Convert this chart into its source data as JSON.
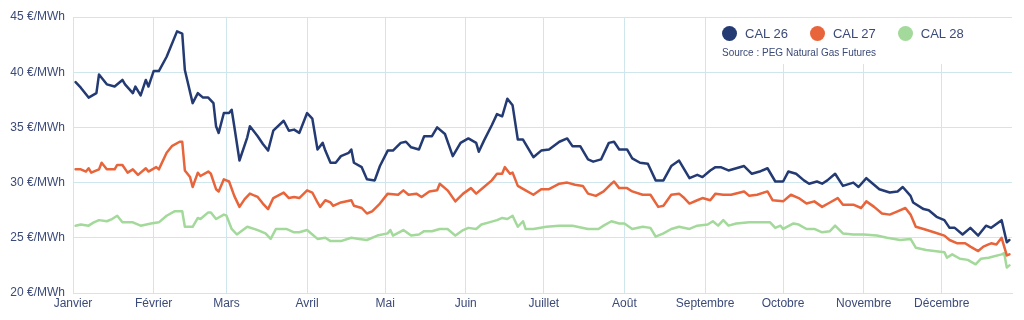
{
  "chart_data": {
    "type": "line",
    "xlim": [
      "--01-01",
      "--12-28"
    ],
    "xticks": [
      {
        "value": "--01-01",
        "label": "Janvier"
      },
      {
        "value": "--02-01",
        "label": "Février"
      },
      {
        "value": "--03-01",
        "label": "Mars"
      },
      {
        "value": "--04-01",
        "label": "Avril"
      },
      {
        "value": "--05-01",
        "label": "Mai"
      },
      {
        "value": "--06-01",
        "label": "Juin"
      },
      {
        "value": "--07-01",
        "label": "Juillet"
      },
      {
        "value": "--08-01",
        "label": "Août"
      },
      {
        "value": "--09-01",
        "label": "Septembre"
      },
      {
        "value": "--10-01",
        "label": "Octobre"
      },
      {
        "value": "--11-01",
        "label": "Novembre"
      },
      {
        "value": "--12-01",
        "label": "Décembre"
      }
    ],
    "ylim": [
      20,
      45
    ],
    "yticks": [
      {
        "value": 20,
        "label": "20 €/MWh"
      },
      {
        "value": 25,
        "label": "25 €/MWh"
      },
      {
        "value": 30,
        "label": "30 €/MWh"
      },
      {
        "value": 35,
        "label": "35 €/MWh"
      },
      {
        "value": 40,
        "label": "40 €/MWh"
      },
      {
        "value": 45,
        "label": "45 €/MWh"
      }
    ],
    "grid": true,
    "legend": "top right",
    "annotations": [
      "Source : PEG Natural Gas Futures"
    ],
    "series": [
      {
        "name": "CAL 26",
        "color": "#243a73",
        "x": [
          "--01-02",
          "--01-04",
          "--01-07",
          "--01-10",
          "--01-11",
          "--01-14",
          "--01-17",
          "--01-20",
          "--01-21",
          "--01-24",
          "--01-25",
          "--01-27",
          "--01-29",
          "--01-30",
          "--02-01",
          "--02-03",
          "--02-06",
          "--02-10",
          "--02-12",
          "--02-13",
          "--02-14",
          "--02-16",
          "--02-18",
          "--02-20",
          "--02-22",
          "--02-24",
          "--02-25",
          "--02-26",
          "--02-28",
          "--03-02",
          "--03-03",
          "--03-04",
          "--03-06",
          "--03-09",
          "--03-10",
          "--03-13",
          "--03-15",
          "--03-17",
          "--03-19",
          "--03-23",
          "--03-25",
          "--03-27",
          "--03-29",
          "--04-01",
          "--04-03",
          "--04-05",
          "--04-07",
          "--04-08",
          "--04-10",
          "--04-12",
          "--04-14",
          "--04-17",
          "--04-18",
          "--04-19",
          "--04-22",
          "--04-24",
          "--04-27",
          "--04-29",
          "--05-02",
          "--05-04",
          "--05-07",
          "--05-09",
          "--05-11",
          "--05-14",
          "--05-16",
          "--05-19",
          "--05-21",
          "--05-24",
          "--05-27",
          "--05-30",
          "--06-02",
          "--06-05",
          "--06-06",
          "--06-08",
          "--06-11",
          "--06-13",
          "--06-15",
          "--06-17",
          "--06-19",
          "--06-21",
          "--06-23",
          "--06-27",
          "--06-30",
          "--07-03",
          "--07-07",
          "--07-10",
          "--07-12",
          "--07-15",
          "--07-18",
          "--07-20",
          "--07-23",
          "--07-26",
          "--07-28",
          "--07-30",
          "--08-02",
          "--08-04",
          "--08-07",
          "--08-10",
          "--08-13",
          "--08-16",
          "--08-19",
          "--08-22",
          "--08-24",
          "--08-26",
          "--08-29",
          "--08-31",
          "--09-03",
          "--09-05",
          "--09-07",
          "--09-10",
          "--09-13",
          "--09-16",
          "--09-19",
          "--09-22",
          "--09-25",
          "--09-28",
          "--10-01",
          "--10-03",
          "--10-06",
          "--10-09",
          "--10-11",
          "--10-14",
          "--10-16",
          "--10-18",
          "--10-21",
          "--10-24",
          "--10-28",
          "--10-30",
          "--11-02",
          "--11-07",
          "--11-11",
          "--11-14",
          "--11-16",
          "--11-19",
          "--11-20",
          "--11-24",
          "--11-26",
          "--11-29",
          "--12-02",
          "--12-04",
          "--12-06",
          "--12-09",
          "--12-12",
          "--12-15",
          "--12-18",
          "--12-20",
          "--12-24",
          "--12-26",
          "--12-27"
        ],
        "values": [
          39.1,
          38.6,
          37.7,
          38.1,
          39.8,
          38.9,
          38.7,
          39.3,
          38.9,
          38.1,
          38.7,
          37.9,
          39.3,
          38.7,
          40.1,
          40.1,
          41.4,
          43.7,
          43.5,
          40.2,
          39.2,
          37.2,
          38.1,
          37.7,
          37.7,
          37.2,
          35.1,
          34.5,
          36.3,
          36.3,
          36.6,
          35.1,
          32.0,
          34.1,
          35.1,
          34.2,
          33.5,
          32.9,
          34.7,
          35.6,
          34.7,
          34.8,
          34.5,
          36.3,
          35.8,
          33.0,
          33.6,
          32.9,
          31.8,
          31.8,
          32.4,
          32.7,
          33.0,
          31.8,
          31.4,
          30.3,
          30.2,
          31.5,
          32.9,
          32.9,
          33.6,
          33.7,
          33.2,
          33.0,
          34.2,
          34.2,
          35.0,
          34.4,
          32.4,
          33.6,
          34.0,
          33.6,
          32.8,
          33.8,
          35.2,
          36.2,
          36.0,
          37.6,
          37.0,
          33.9,
          33.9,
          32.3,
          32.9,
          33.0,
          33.7,
          34.0,
          33.3,
          33.3,
          32.1,
          31.9,
          32.1,
          33.6,
          33.7,
          33.0,
          33.0,
          32.2,
          31.8,
          31.7,
          30.2,
          30.2,
          31.5,
          32.0,
          31.2,
          30.4,
          30.7,
          30.5,
          31.1,
          31.4,
          31.4,
          31.1,
          31.3,
          31.5,
          30.8,
          31.0,
          31.3,
          30.1,
          30.1,
          31.0,
          30.8,
          30.2,
          29.9,
          30.1,
          29.9,
          30.2,
          30.8,
          29.7,
          30.0,
          29.6,
          30.4,
          29.4,
          29.1,
          29.2,
          29.6,
          28.8,
          28.2,
          27.6,
          27.5,
          26.9,
          26.6,
          25.9,
          25.9,
          25.3,
          25.9,
          25.2,
          26.1,
          25.9,
          26.6,
          24.6,
          24.8
        ]
      },
      {
        "name": "CAL 27",
        "color": "#e8643a",
        "x": [
          "--01-02",
          "--01-04",
          "--01-06",
          "--01-07",
          "--01-08",
          "--01-11",
          "--01-12",
          "--01-14",
          "--01-17",
          "--01-18",
          "--01-20",
          "--01-22",
          "--01-24",
          "--01-26",
          "--01-29",
          "--01-30",
          "--02-02",
          "--02-03",
          "--02-06",
          "--02-08",
          "--02-11",
          "--02-12",
          "--02-13",
          "--02-15",
          "--02-16",
          "--02-18",
          "--02-19",
          "--02-22",
          "--02-23",
          "--02-25",
          "--02-26",
          "--02-28",
          "--03-02",
          "--03-04",
          "--03-06",
          "--03-08",
          "--03-10",
          "--03-13",
          "--03-15",
          "--03-17",
          "--03-19",
          "--03-23",
          "--03-25",
          "--03-27",
          "--03-29",
          "--04-01",
          "--04-03",
          "--04-05",
          "--04-06",
          "--04-08",
          "--04-10",
          "--04-11",
          "--04-14",
          "--04-18",
          "--04-19",
          "--04-22",
          "--04-24",
          "--04-26",
          "--04-29",
          "--05-02",
          "--05-06",
          "--05-08",
          "--05-10",
          "--05-13",
          "--05-15",
          "--05-18",
          "--05-21",
          "--05-22",
          "--05-25",
          "--05-28",
          "--05-31",
          "--06-03",
          "--06-05",
          "--06-08",
          "--06-11",
          "--06-13",
          "--06-15",
          "--06-16",
          "--06-18",
          "--06-19",
          "--06-21",
          "--06-24",
          "--06-27",
          "--06-30",
          "--07-03",
          "--07-07",
          "--07-10",
          "--07-13",
          "--07-16",
          "--07-18",
          "--07-21",
          "--07-24",
          "--07-27",
          "--07-28",
          "--07-30",
          "--08-02",
          "--08-04",
          "--08-08",
          "--08-11",
          "--08-14",
          "--08-16",
          "--08-19",
          "--08-22",
          "--08-24",
          "--08-26",
          "--08-29",
          "--08-31",
          "--09-03",
          "--09-05",
          "--09-08",
          "--09-11",
          "--09-16",
          "--09-18",
          "--09-21",
          "--09-25",
          "--09-27",
          "--10-01",
          "--10-04",
          "--10-07",
          "--10-10",
          "--10-13",
          "--10-16",
          "--10-19",
          "--10-22",
          "--10-24",
          "--10-28",
          "--10-31",
          "--11-02",
          "--11-05",
          "--11-08",
          "--11-11",
          "--11-14",
          "--11-17",
          "--11-19",
          "--11-21",
          "--11-24",
          "--11-28",
          "--12-02",
          "--12-04",
          "--12-07",
          "--12-10",
          "--12-12",
          "--12-15",
          "--12-17",
          "--12-19",
          "--12-20",
          "--12-22",
          "--12-24",
          "--12-26",
          "--12-27"
        ],
        "values": [
          31.2,
          31.2,
          31.0,
          31.3,
          30.9,
          31.2,
          31.8,
          31.2,
          31.2,
          31.6,
          31.6,
          30.9,
          31.2,
          30.7,
          31.3,
          31.0,
          31.4,
          31.2,
          32.7,
          33.3,
          33.7,
          33.7,
          31.1,
          30.5,
          29.6,
          30.9,
          30.6,
          31.0,
          30.8,
          29.4,
          29.2,
          30.3,
          30.1,
          28.8,
          27.8,
          28.5,
          29.0,
          28.7,
          28.1,
          27.6,
          28.6,
          29.1,
          28.6,
          28.7,
          28.6,
          29.3,
          29.1,
          28.2,
          27.8,
          28.4,
          28.2,
          27.9,
          28.2,
          28.4,
          27.9,
          27.7,
          27.2,
          27.4,
          28.1,
          29.0,
          28.9,
          29.3,
          28.9,
          29.0,
          28.7,
          29.2,
          29.3,
          29.9,
          29.3,
          28.3,
          29.0,
          29.5,
          29.0,
          29.6,
          30.2,
          30.8,
          30.8,
          31.4,
          30.8,
          30.9,
          29.7,
          29.3,
          28.9,
          29.4,
          29.4,
          29.9,
          30.0,
          29.8,
          29.7,
          29.0,
          28.8,
          29.2,
          29.9,
          30.1,
          29.5,
          29.5,
          29.2,
          28.9,
          28.9,
          27.8,
          27.9,
          28.9,
          29.0,
          28.6,
          28.1,
          28.4,
          28.6,
          28.4,
          29.0,
          28.9,
          28.9,
          29.2,
          28.8,
          28.9,
          29.2,
          28.4,
          28.3,
          28.9,
          28.6,
          28.1,
          28.3,
          27.8,
          28.2,
          28.6,
          28.0,
          28.0,
          27.7,
          28.3,
          27.8,
          27.2,
          27.1,
          27.4,
          27.7,
          27.1,
          26.0,
          25.8,
          25.5,
          25.2,
          24.8,
          24.5,
          24.5,
          24.2,
          23.8,
          24.2,
          24.4,
          24.5,
          24.4,
          25.0,
          23.4,
          23.5
        ]
      },
      {
        "name": "CAL 28",
        "color": "#a3d99a",
        "x": [
          "--01-02",
          "--01-04",
          "--01-07",
          "--01-09",
          "--01-11",
          "--01-14",
          "--01-16",
          "--01-18",
          "--01-20",
          "--01-24",
          "--01-27",
          "--01-31",
          "--02-03",
          "--02-06",
          "--02-09",
          "--02-12",
          "--02-13",
          "--02-16",
          "--02-18",
          "--02-19",
          "--02-22",
          "--02-23",
          "--02-25",
          "--02-28",
          "--03-01",
          "--03-03",
          "--03-05",
          "--03-09",
          "--03-13",
          "--03-16",
          "--03-18",
          "--03-20",
          "--03-24",
          "--03-27",
          "--03-29",
          "--04-01",
          "--04-05",
          "--04-08",
          "--04-10",
          "--04-14",
          "--04-18",
          "--04-21",
          "--04-24",
          "--04-28",
          "--05-02",
          "--05-03",
          "--05-04",
          "--05-08",
          "--05-11",
          "--05-14",
          "--05-16",
          "--05-19",
          "--05-22",
          "--05-25",
          "--05-28",
          "--05-31",
          "--06-02",
          "--06-05",
          "--06-07",
          "--06-10",
          "--06-13",
          "--06-15",
          "--06-17",
          "--06-19",
          "--06-21",
          "--06-23",
          "--06-24",
          "--06-27",
          "--07-02",
          "--07-07",
          "--07-12",
          "--07-18",
          "--07-22",
          "--07-24",
          "--07-27",
          "--07-30",
          "--08-01",
          "--08-04",
          "--08-08",
          "--08-11",
          "--08-13",
          "--08-16",
          "--08-19",
          "--08-22",
          "--08-26",
          "--08-29",
          "--09-02",
          "--09-04",
          "--09-06",
          "--09-08",
          "--09-10",
          "--09-13",
          "--09-18",
          "--09-23",
          "--09-26",
          "--09-28",
          "--09-30",
          "--10-01",
          "--10-05",
          "--10-07",
          "--10-10",
          "--10-13",
          "--10-16",
          "--10-19",
          "--10-21",
          "--10-24",
          "--10-28",
          "--11-01",
          "--11-06",
          "--11-10",
          "--11-15",
          "--11-19",
          "--11-21",
          "--11-25",
          "--12-02",
          "--12-03",
          "--12-05",
          "--12-08",
          "--12-11",
          "--12-14",
          "--12-16",
          "--12-19",
          "--12-24",
          "--12-25",
          "--12-26",
          "--12-27"
        ],
        "values": [
          26.1,
          26.2,
          26.1,
          26.4,
          26.6,
          26.5,
          26.7,
          27.0,
          26.4,
          26.4,
          26.1,
          26.3,
          26.4,
          27.0,
          27.4,
          27.4,
          26.0,
          26.0,
          26.8,
          26.7,
          27.3,
          27.3,
          26.7,
          27.1,
          27.0,
          25.8,
          25.3,
          26.0,
          25.7,
          25.4,
          24.9,
          25.8,
          25.8,
          25.5,
          25.5,
          25.7,
          24.9,
          25.0,
          24.7,
          24.7,
          25.0,
          24.9,
          24.8,
          25.2,
          25.4,
          25.7,
          25.2,
          25.7,
          25.2,
          25.3,
          25.6,
          25.6,
          25.8,
          25.8,
          25.2,
          25.7,
          25.9,
          25.8,
          26.2,
          26.4,
          26.6,
          26.8,
          26.7,
          27.0,
          26.0,
          26.5,
          25.8,
          25.8,
          26.0,
          26.1,
          26.1,
          25.8,
          25.8,
          26.1,
          26.5,
          26.3,
          26.3,
          25.8,
          26.0,
          25.9,
          25.1,
          25.4,
          25.8,
          26.0,
          25.8,
          26.1,
          26.2,
          26.5,
          26.1,
          26.6,
          26.1,
          26.3,
          26.4,
          26.4,
          26.4,
          25.9,
          26.1,
          25.8,
          26.3,
          26.2,
          25.8,
          25.8,
          25.5,
          25.6,
          26.1,
          25.4,
          25.3,
          25.3,
          25.2,
          25.0,
          24.8,
          24.9,
          24.1,
          23.9,
          23.7,
          23.2,
          23.5,
          23.1,
          23.0,
          22.6,
          23.1,
          23.2,
          23.5,
          23.6,
          22.3,
          22.5
        ]
      }
    ]
  }
}
